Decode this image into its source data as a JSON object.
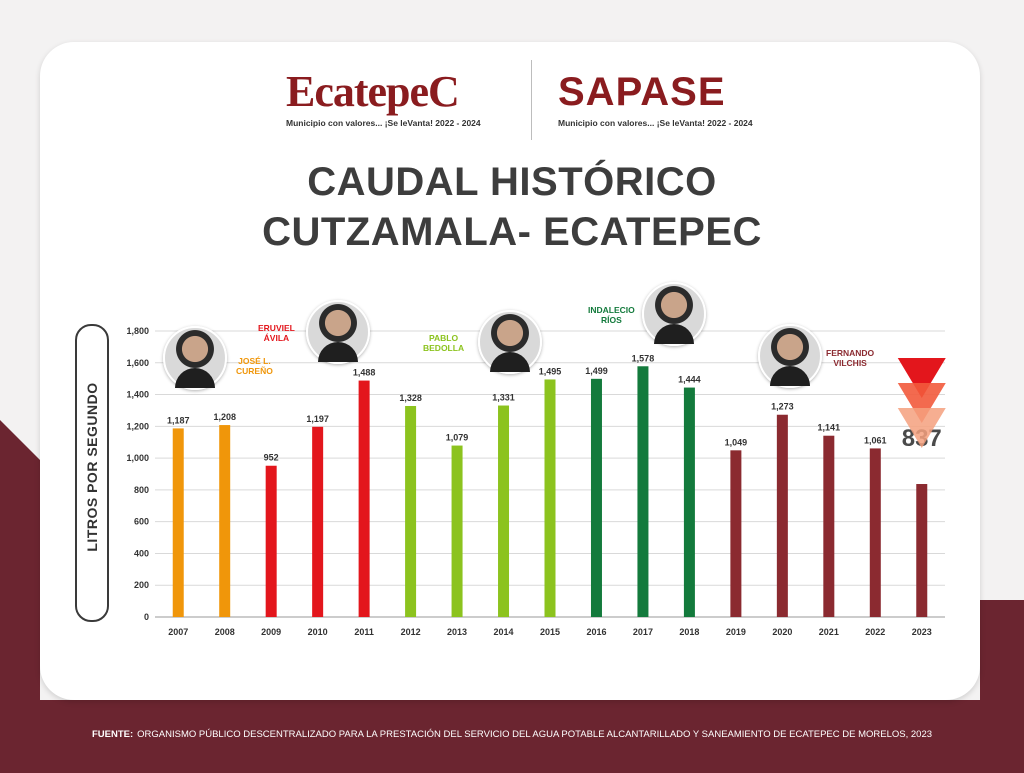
{
  "logos": {
    "ecatepec": {
      "name": "EcatepeC",
      "tagline": "Municipio con valores... ¡Se leVanta! 2022 - 2024"
    },
    "sapase": {
      "name": "SAPASE",
      "tagline": "Municipio con valores... ¡Se leVanta! 2022 - 2024"
    }
  },
  "title_line1": "CAUDAL HISTÓRICO",
  "title_line2": "CUTZAMALA- ECATEPEC",
  "y_axis_label": "LITROS POR SEGUNDO",
  "footer": {
    "label": "FUENTE:",
    "text": "ORGANISMO PÚBLICO DESCENTRALIZADO PARA LA PRESTACIÓN DEL SERVICIO DEL AGUA POTABLE ALCANTARILLADO Y SANEAMIENTO DE ECATEPEC DE MORELOS, 2023"
  },
  "people": [
    {
      "name": "JOSÉ L. CUREÑO",
      "line1": "JOSÉ L.",
      "line2": "CUREÑO",
      "color": "#f0960a"
    },
    {
      "name": "ERUVIEL ÁVILA",
      "line1": "ERUVIEL",
      "line2": "ÁVILA",
      "color": "#e3161c"
    },
    {
      "name": "PABLO BEDOLLA",
      "line1": "PABLO",
      "line2": "BEDOLLA",
      "color": "#8cc31e"
    },
    {
      "name": "INDALECIO RÍOS",
      "line1": "INDALECIO",
      "line2": "RÍOS",
      "color": "#137a3c"
    },
    {
      "name": "FERNANDO VILCHIS",
      "line1": "FERNANDO",
      "line2": "VILCHIS",
      "color": "#8b2a30"
    }
  ],
  "colors": {
    "orange": "#f0960a",
    "red": "#e3161c",
    "light_green": "#8cc31e",
    "dark_green": "#137a3c",
    "maroon": "#8b2a30",
    "footer_band": "#6b2530"
  },
  "chart_data": {
    "type": "bar",
    "categories": [
      "2007",
      "2008",
      "2009",
      "2010",
      "2011",
      "2012",
      "2013",
      "2014",
      "2015",
      "2016",
      "2017",
      "2018",
      "2019",
      "2020",
      "2021",
      "2022",
      "2023"
    ],
    "values": [
      1187,
      1208,
      952,
      1197,
      1488,
      1328,
      1079,
      1331,
      1495,
      1499,
      1578,
      1444,
      1049,
      1273,
      1141,
      1061,
      837
    ],
    "value_labels": [
      "1,187",
      "1,208",
      "952",
      "1,197",
      "1,488",
      "1,328",
      "1,079",
      "1,331",
      "1,495",
      "1,499",
      "1,578",
      "1,444",
      "1,049",
      "1,273",
      "1,141",
      "1,061",
      "837"
    ],
    "bar_colors": [
      "#f0960a",
      "#f0960a",
      "#e3161c",
      "#e3161c",
      "#e3161c",
      "#8cc31e",
      "#8cc31e",
      "#8cc31e",
      "#8cc31e",
      "#137a3c",
      "#137a3c",
      "#137a3c",
      "#8b2a30",
      "#8b2a30",
      "#8b2a30",
      "#8b2a30",
      "#8b2a30"
    ],
    "ylim": [
      0,
      1800
    ],
    "yticks": [
      0,
      200,
      400,
      600,
      800,
      1000,
      1200,
      1400,
      1600,
      1800
    ],
    "ytick_labels": [
      "0",
      "200",
      "400",
      "600",
      "800",
      "1,000",
      "1,200",
      "1,400",
      "1,600",
      "1,800"
    ],
    "ylabel": "LITROS POR SEGUNDO",
    "grid": true,
    "highlight_last": true
  }
}
